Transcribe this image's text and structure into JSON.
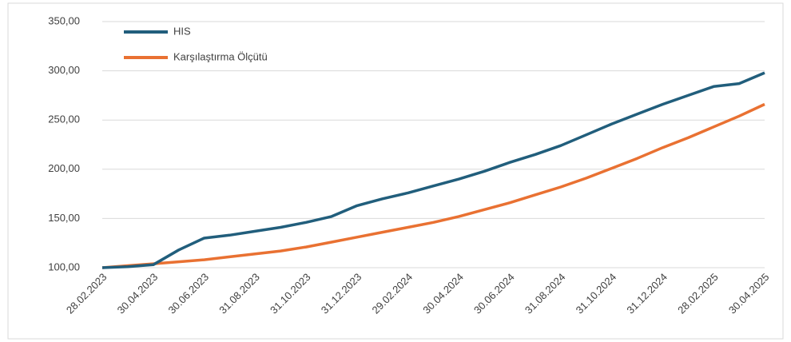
{
  "chart_data": {
    "type": "line",
    "categories": [
      "28.02.2023",
      null,
      "30.04.2023",
      null,
      "30.06.2023",
      null,
      "31.08.2023",
      null,
      "31.10.2023",
      null,
      "31.12.2023",
      null,
      "29.02.2024",
      null,
      "30.04.2024",
      null,
      "30.06.2024",
      null,
      "31.08.2024",
      null,
      "31.10.2024",
      null,
      "31.12.2024",
      null,
      "28.02.2025",
      null,
      "30.04.2025"
    ],
    "series": [
      {
        "name": "HIS",
        "color": "#215e7c",
        "values": [
          100,
          101,
          103,
          118,
          130,
          133,
          137,
          141,
          146,
          152,
          163,
          170,
          176,
          183,
          190,
          198,
          207,
          215,
          224,
          235,
          246,
          256,
          266,
          275,
          284,
          287,
          298
        ]
      },
      {
        "name": "Karşılaştırma Ölçütü",
        "color": "#e97132",
        "values": [
          100,
          102,
          104,
          106,
          108,
          111,
          114,
          117,
          121,
          126,
          131,
          136,
          141,
          146,
          152,
          159,
          166,
          174,
          182,
          191,
          201,
          211,
          222,
          232,
          243,
          254,
          266
        ]
      }
    ],
    "ylim": [
      100,
      350
    ],
    "yticks": [
      {
        "value": 100,
        "label": "100,00"
      },
      {
        "value": 150,
        "label": "150,00"
      },
      {
        "value": 200,
        "label": "200,00"
      },
      {
        "value": 250,
        "label": "250,00"
      },
      {
        "value": 300,
        "label": "300,00"
      },
      {
        "value": 350,
        "label": "350,00"
      }
    ],
    "grid": true,
    "legend": "top-left"
  }
}
